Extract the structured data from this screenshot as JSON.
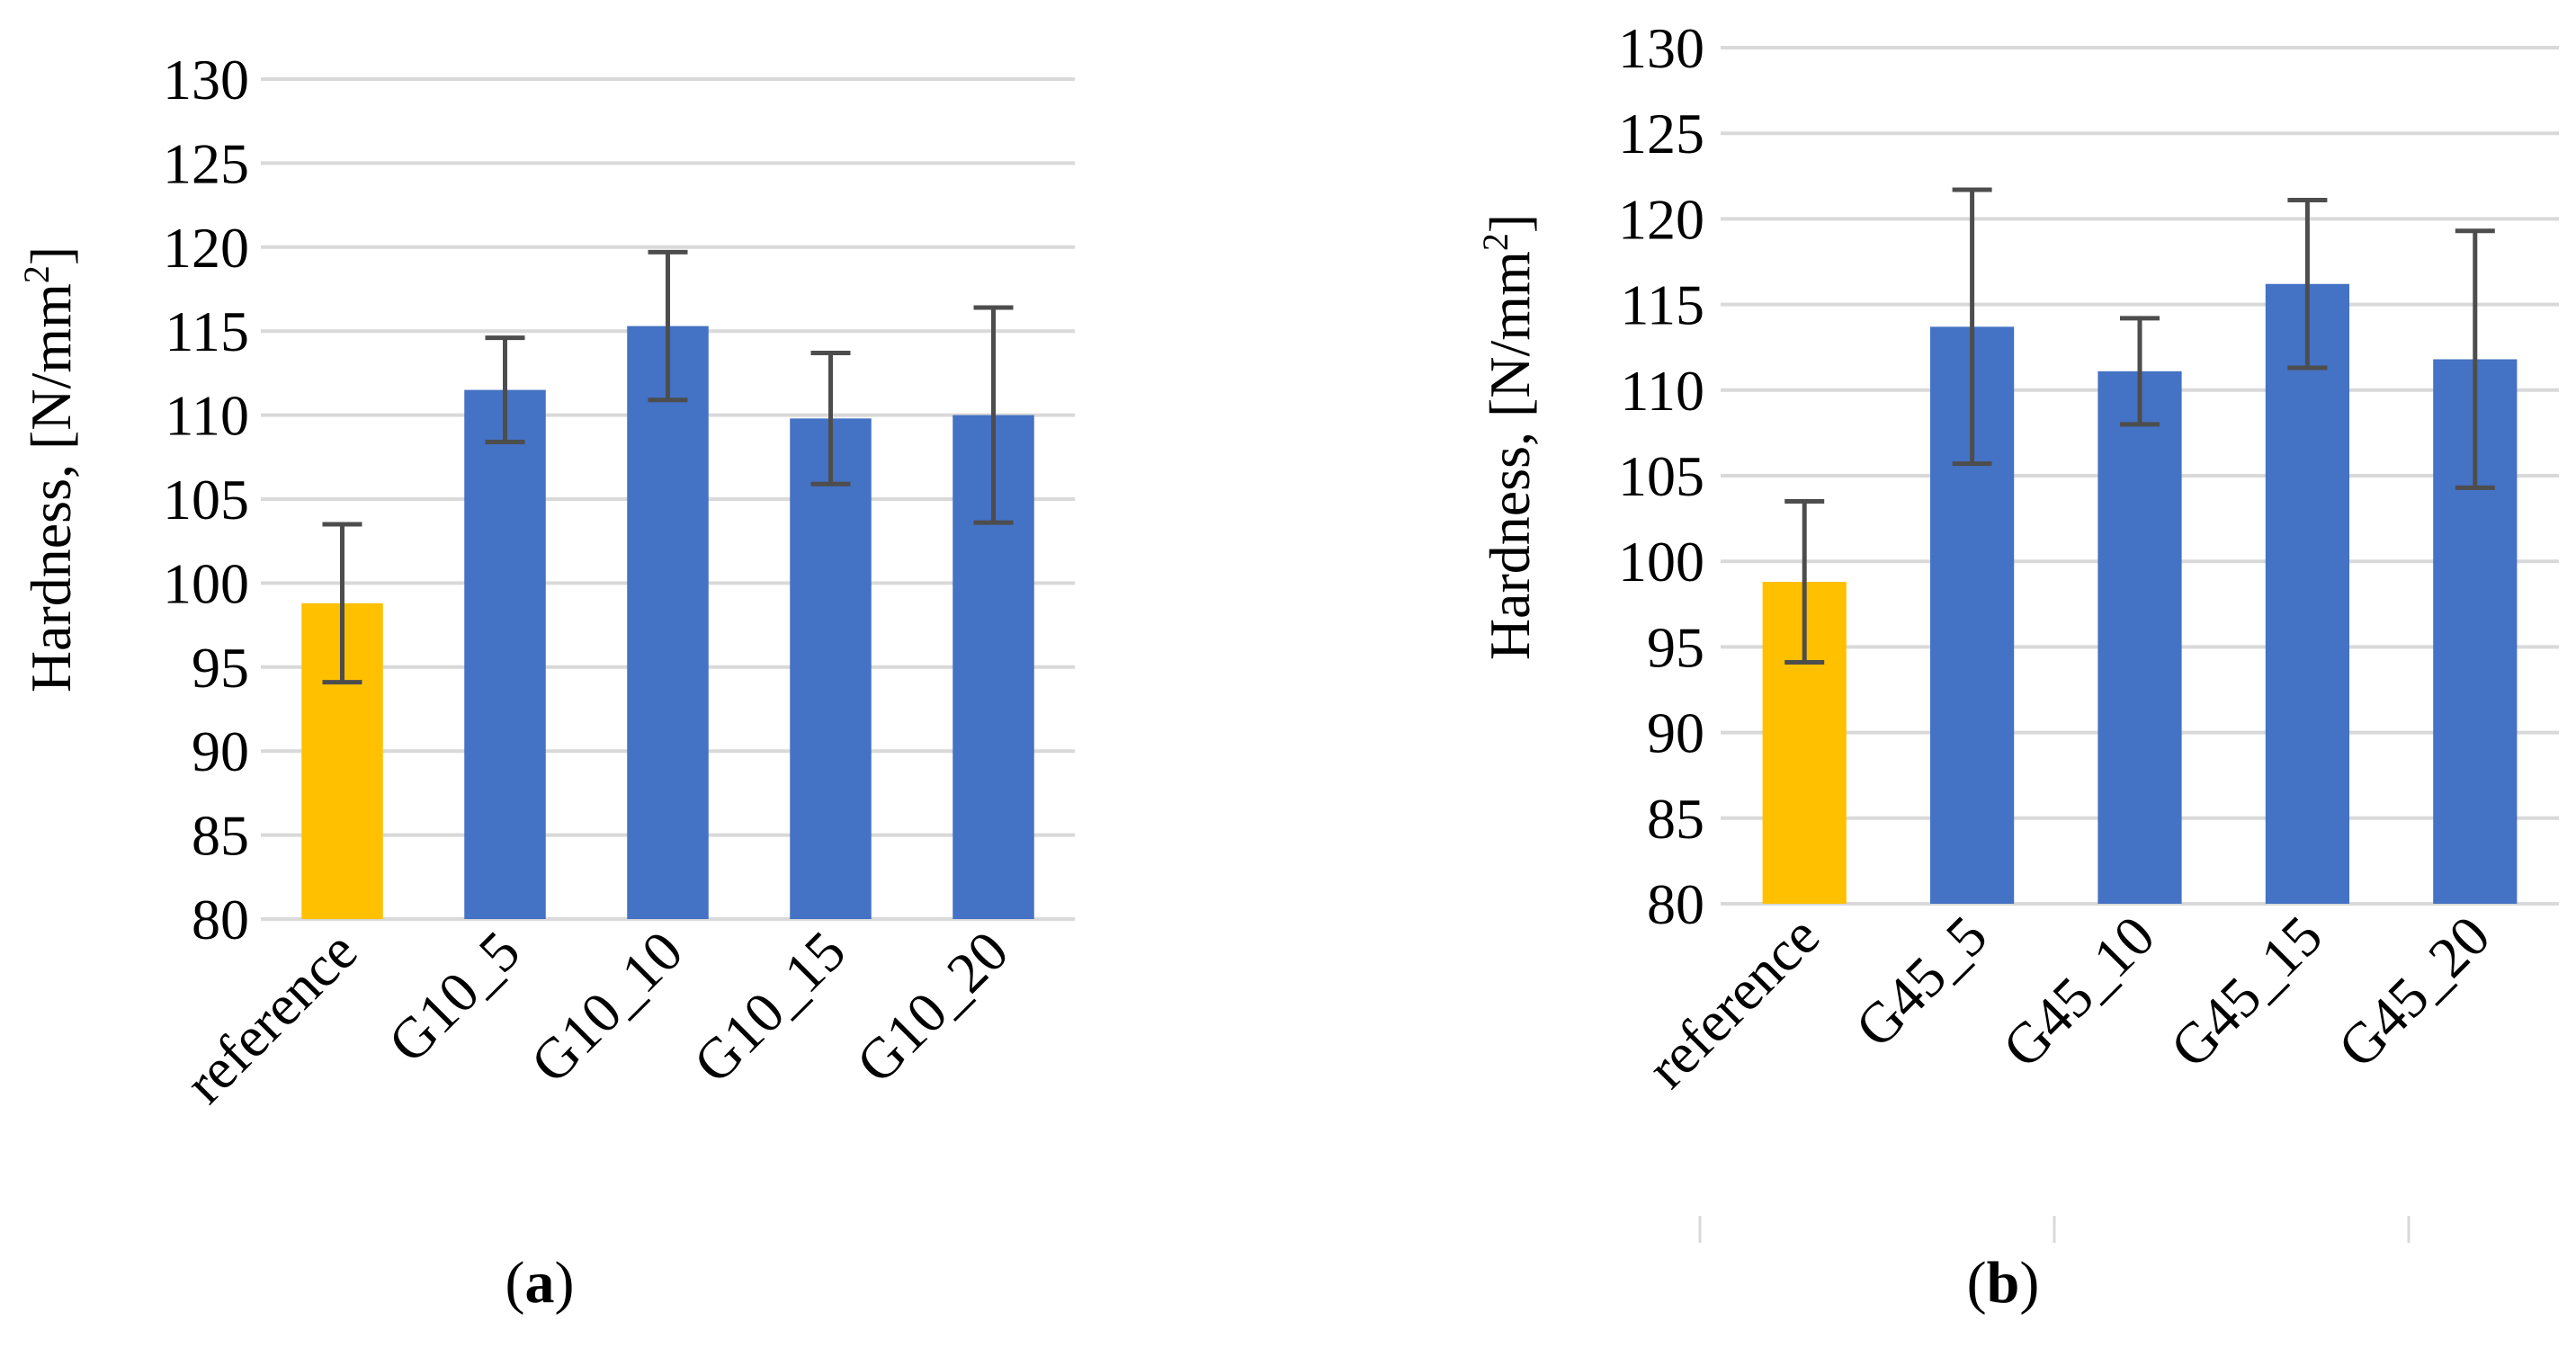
{
  "chart_data": [
    {
      "type": "bar",
      "id": "a",
      "caption": "a",
      "ylabel": "Hardness, [N/mm",
      "ylabel_sup": "2",
      "ylabel_close": "]",
      "ylim": [
        80,
        130
      ],
      "ytick_step": 5,
      "categories": [
        "reference",
        "G10_5",
        "G10_10",
        "G10_15",
        "G10_20"
      ],
      "values": [
        98.8,
        111.5,
        115.3,
        109.8,
        110.0
      ],
      "errors": [
        4.7,
        3.1,
        4.4,
        3.9,
        6.4
      ],
      "colors": [
        "#FFC000",
        "#4472C4",
        "#4472C4",
        "#4472C4",
        "#4472C4"
      ]
    },
    {
      "type": "bar",
      "id": "b",
      "caption": "b",
      "ylabel": "Hardness, [N/mm",
      "ylabel_sup": "2",
      "ylabel_close": "]",
      "ylim": [
        80,
        130
      ],
      "ytick_step": 5,
      "categories": [
        "reference",
        "G45_5",
        "G45_10",
        "G45_15",
        "G45_20"
      ],
      "values": [
        98.8,
        113.7,
        111.1,
        116.2,
        111.8
      ],
      "errors": [
        4.7,
        8.0,
        3.1,
        4.9,
        7.5
      ],
      "colors": [
        "#FFC000",
        "#4472C4",
        "#4472C4",
        "#4472C4",
        "#4472C4"
      ]
    }
  ]
}
